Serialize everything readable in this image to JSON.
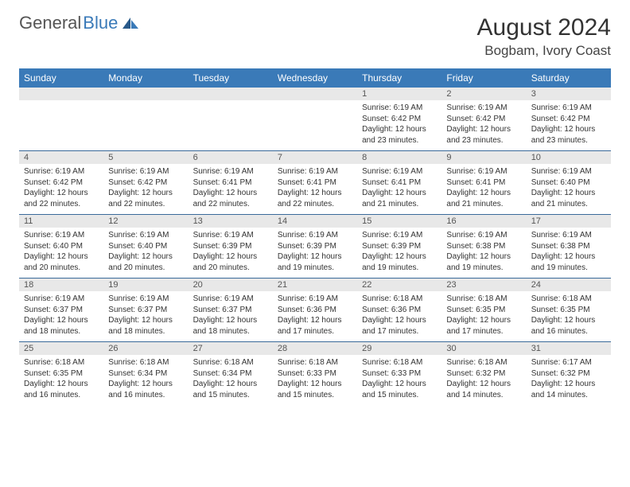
{
  "brand": {
    "part1": "General",
    "part2": "Blue"
  },
  "title": "August 2024",
  "location": "Bogbam, Ivory Coast",
  "header_bg": "#3a7ab8",
  "header_fg": "#ffffff",
  "daynum_bg": "#e8e8e8",
  "border_color": "#3a6a9a",
  "font_family": "Arial, Helvetica, sans-serif",
  "day_headers": [
    "Sunday",
    "Monday",
    "Tuesday",
    "Wednesday",
    "Thursday",
    "Friday",
    "Saturday"
  ],
  "weeks": [
    [
      {
        "num": "",
        "text": ""
      },
      {
        "num": "",
        "text": ""
      },
      {
        "num": "",
        "text": ""
      },
      {
        "num": "",
        "text": ""
      },
      {
        "num": "1",
        "text": "Sunrise: 6:19 AM\nSunset: 6:42 PM\nDaylight: 12 hours and 23 minutes."
      },
      {
        "num": "2",
        "text": "Sunrise: 6:19 AM\nSunset: 6:42 PM\nDaylight: 12 hours and 23 minutes."
      },
      {
        "num": "3",
        "text": "Sunrise: 6:19 AM\nSunset: 6:42 PM\nDaylight: 12 hours and 23 minutes."
      }
    ],
    [
      {
        "num": "4",
        "text": "Sunrise: 6:19 AM\nSunset: 6:42 PM\nDaylight: 12 hours and 22 minutes."
      },
      {
        "num": "5",
        "text": "Sunrise: 6:19 AM\nSunset: 6:42 PM\nDaylight: 12 hours and 22 minutes."
      },
      {
        "num": "6",
        "text": "Sunrise: 6:19 AM\nSunset: 6:41 PM\nDaylight: 12 hours and 22 minutes."
      },
      {
        "num": "7",
        "text": "Sunrise: 6:19 AM\nSunset: 6:41 PM\nDaylight: 12 hours and 22 minutes."
      },
      {
        "num": "8",
        "text": "Sunrise: 6:19 AM\nSunset: 6:41 PM\nDaylight: 12 hours and 21 minutes."
      },
      {
        "num": "9",
        "text": "Sunrise: 6:19 AM\nSunset: 6:41 PM\nDaylight: 12 hours and 21 minutes."
      },
      {
        "num": "10",
        "text": "Sunrise: 6:19 AM\nSunset: 6:40 PM\nDaylight: 12 hours and 21 minutes."
      }
    ],
    [
      {
        "num": "11",
        "text": "Sunrise: 6:19 AM\nSunset: 6:40 PM\nDaylight: 12 hours and 20 minutes."
      },
      {
        "num": "12",
        "text": "Sunrise: 6:19 AM\nSunset: 6:40 PM\nDaylight: 12 hours and 20 minutes."
      },
      {
        "num": "13",
        "text": "Sunrise: 6:19 AM\nSunset: 6:39 PM\nDaylight: 12 hours and 20 minutes."
      },
      {
        "num": "14",
        "text": "Sunrise: 6:19 AM\nSunset: 6:39 PM\nDaylight: 12 hours and 19 minutes."
      },
      {
        "num": "15",
        "text": "Sunrise: 6:19 AM\nSunset: 6:39 PM\nDaylight: 12 hours and 19 minutes."
      },
      {
        "num": "16",
        "text": "Sunrise: 6:19 AM\nSunset: 6:38 PM\nDaylight: 12 hours and 19 minutes."
      },
      {
        "num": "17",
        "text": "Sunrise: 6:19 AM\nSunset: 6:38 PM\nDaylight: 12 hours and 19 minutes."
      }
    ],
    [
      {
        "num": "18",
        "text": "Sunrise: 6:19 AM\nSunset: 6:37 PM\nDaylight: 12 hours and 18 minutes."
      },
      {
        "num": "19",
        "text": "Sunrise: 6:19 AM\nSunset: 6:37 PM\nDaylight: 12 hours and 18 minutes."
      },
      {
        "num": "20",
        "text": "Sunrise: 6:19 AM\nSunset: 6:37 PM\nDaylight: 12 hours and 18 minutes."
      },
      {
        "num": "21",
        "text": "Sunrise: 6:19 AM\nSunset: 6:36 PM\nDaylight: 12 hours and 17 minutes."
      },
      {
        "num": "22",
        "text": "Sunrise: 6:18 AM\nSunset: 6:36 PM\nDaylight: 12 hours and 17 minutes."
      },
      {
        "num": "23",
        "text": "Sunrise: 6:18 AM\nSunset: 6:35 PM\nDaylight: 12 hours and 17 minutes."
      },
      {
        "num": "24",
        "text": "Sunrise: 6:18 AM\nSunset: 6:35 PM\nDaylight: 12 hours and 16 minutes."
      }
    ],
    [
      {
        "num": "25",
        "text": "Sunrise: 6:18 AM\nSunset: 6:35 PM\nDaylight: 12 hours and 16 minutes."
      },
      {
        "num": "26",
        "text": "Sunrise: 6:18 AM\nSunset: 6:34 PM\nDaylight: 12 hours and 16 minutes."
      },
      {
        "num": "27",
        "text": "Sunrise: 6:18 AM\nSunset: 6:34 PM\nDaylight: 12 hours and 15 minutes."
      },
      {
        "num": "28",
        "text": "Sunrise: 6:18 AM\nSunset: 6:33 PM\nDaylight: 12 hours and 15 minutes."
      },
      {
        "num": "29",
        "text": "Sunrise: 6:18 AM\nSunset: 6:33 PM\nDaylight: 12 hours and 15 minutes."
      },
      {
        "num": "30",
        "text": "Sunrise: 6:18 AM\nSunset: 6:32 PM\nDaylight: 12 hours and 14 minutes."
      },
      {
        "num": "31",
        "text": "Sunrise: 6:17 AM\nSunset: 6:32 PM\nDaylight: 12 hours and 14 minutes."
      }
    ]
  ]
}
